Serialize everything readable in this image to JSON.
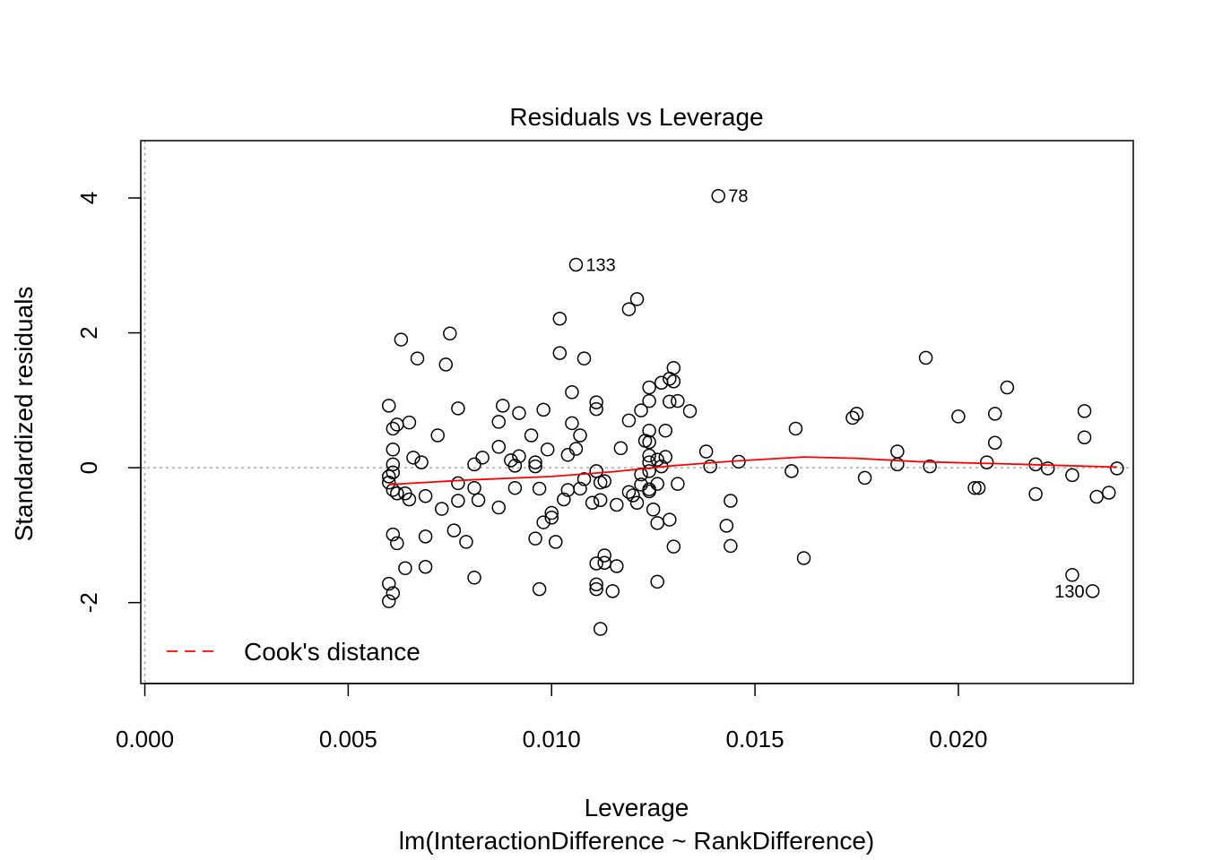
{
  "chart_data": {
    "type": "scatter",
    "title": "Residuals vs Leverage",
    "xlabel": "Leverage",
    "subtitle": "lm(InteractionDifference ~ RankDifference)",
    "ylabel": "Standardized residuals",
    "xlim": [
      -0.0001,
      0.0243
    ],
    "ylim": [
      -3.2,
      4.85
    ],
    "x_ticks": [
      0.0,
      0.005,
      0.01,
      0.015,
      0.02
    ],
    "x_tick_labels": [
      "0.000",
      "0.005",
      "0.010",
      "0.015",
      "0.020"
    ],
    "y_ticks": [
      -2,
      0,
      2,
      4
    ],
    "y_tick_labels": [
      "-2",
      "0",
      "2",
      "4"
    ],
    "reference_lines": {
      "x": 0,
      "y": 0,
      "style": "dotted",
      "color": "#aaaaaa"
    },
    "legend": {
      "position": "bottom-left",
      "entries": [
        {
          "label": "Cook's distance",
          "color": "#ff0000",
          "style": "dashed"
        }
      ]
    },
    "point_color": "#000000",
    "smooth_color": "#ff0000",
    "points": [
      [
        0.0141,
        4.03
      ],
      [
        0.0106,
        3.01
      ],
      [
        0.0121,
        2.5
      ],
      [
        0.0119,
        2.35
      ],
      [
        0.0102,
        2.21
      ],
      [
        0.0063,
        1.9
      ],
      [
        0.0075,
        1.99
      ],
      [
        0.0067,
        1.62
      ],
      [
        0.0074,
        1.53
      ],
      [
        0.0102,
        1.7
      ],
      [
        0.0108,
        1.62
      ],
      [
        0.013,
        1.48
      ],
      [
        0.0129,
        1.32
      ],
      [
        0.013,
        1.28
      ],
      [
        0.0127,
        1.26
      ],
      [
        0.0124,
        1.19
      ],
      [
        0.0105,
        1.12
      ],
      [
        0.0124,
        0.99
      ],
      [
        0.0129,
        0.98
      ],
      [
        0.0131,
        0.99
      ],
      [
        0.0111,
        0.97
      ],
      [
        0.006,
        0.92
      ],
      [
        0.0077,
        0.88
      ],
      [
        0.0088,
        0.92
      ],
      [
        0.0098,
        0.86
      ],
      [
        0.0111,
        0.87
      ],
      [
        0.0092,
        0.81
      ],
      [
        0.0122,
        0.85
      ],
      [
        0.0134,
        0.84
      ],
      [
        0.0065,
        0.67
      ],
      [
        0.0087,
        0.68
      ],
      [
        0.0105,
        0.66
      ],
      [
        0.0119,
        0.7
      ],
      [
        0.0062,
        0.64
      ],
      [
        0.0061,
        0.58
      ],
      [
        0.0124,
        0.55
      ],
      [
        0.0128,
        0.55
      ],
      [
        0.0072,
        0.48
      ],
      [
        0.0095,
        0.48
      ],
      [
        0.0107,
        0.48
      ],
      [
        0.0123,
        0.4
      ],
      [
        0.0124,
        0.38
      ],
      [
        0.0087,
        0.31
      ],
      [
        0.0099,
        0.27
      ],
      [
        0.0106,
        0.28
      ],
      [
        0.0117,
        0.29
      ],
      [
        0.0061,
        0.27
      ],
      [
        0.0083,
        0.15
      ],
      [
        0.0092,
        0.17
      ],
      [
        0.009,
        0.11
      ],
      [
        0.0104,
        0.19
      ],
      [
        0.0124,
        0.18
      ],
      [
        0.0126,
        0.12
      ],
      [
        0.0128,
        0.16
      ],
      [
        0.0066,
        0.15
      ],
      [
        0.0068,
        0.08
      ],
      [
        0.0081,
        0.05
      ],
      [
        0.0091,
        0.03
      ],
      [
        0.0096,
        0.08
      ],
      [
        0.0096,
        0.02
      ],
      [
        0.0124,
        0.08
      ],
      [
        0.0127,
        0.02
      ],
      [
        0.0061,
        0.05
      ],
      [
        0.0061,
        -0.07
      ],
      [
        0.006,
        -0.13
      ],
      [
        0.0111,
        -0.05
      ],
      [
        0.0108,
        -0.17
      ],
      [
        0.0112,
        -0.22
      ],
      [
        0.0113,
        -0.2
      ],
      [
        0.0122,
        -0.1
      ],
      [
        0.0124,
        -0.05
      ],
      [
        0.0126,
        -0.24
      ],
      [
        0.0131,
        -0.24
      ],
      [
        0.006,
        -0.22
      ],
      [
        0.0061,
        -0.33
      ],
      [
        0.0062,
        -0.38
      ],
      [
        0.0064,
        -0.38
      ],
      [
        0.0065,
        -0.47
      ],
      [
        0.0069,
        -0.42
      ],
      [
        0.0077,
        -0.23
      ],
      [
        0.0081,
        -0.3
      ],
      [
        0.0082,
        -0.48
      ],
      [
        0.0091,
        -0.3
      ],
      [
        0.0097,
        -0.31
      ],
      [
        0.0104,
        -0.33
      ],
      [
        0.0107,
        -0.31
      ],
      [
        0.0103,
        -0.47
      ],
      [
        0.011,
        -0.52
      ],
      [
        0.0112,
        -0.48
      ],
      [
        0.0116,
        -0.55
      ],
      [
        0.0119,
        -0.36
      ],
      [
        0.012,
        -0.41
      ],
      [
        0.0121,
        -0.52
      ],
      [
        0.0122,
        -0.25
      ],
      [
        0.0124,
        -0.35
      ],
      [
        0.0124,
        -0.32
      ],
      [
        0.0125,
        -0.62
      ],
      [
        0.0077,
        -0.49
      ],
      [
        0.0073,
        -0.61
      ],
      [
        0.0087,
        -0.59
      ],
      [
        0.01,
        -0.67
      ],
      [
        0.01,
        -0.74
      ],
      [
        0.0098,
        -0.81
      ],
      [
        0.0126,
        -0.82
      ],
      [
        0.0129,
        -0.77
      ],
      [
        0.0061,
        -0.99
      ],
      [
        0.0062,
        -1.12
      ],
      [
        0.0069,
        -1.02
      ],
      [
        0.0076,
        -0.93
      ],
      [
        0.0079,
        -1.1
      ],
      [
        0.0096,
        -1.05
      ],
      [
        0.0101,
        -1.1
      ],
      [
        0.013,
        -1.17
      ],
      [
        0.0064,
        -1.49
      ],
      [
        0.0069,
        -1.47
      ],
      [
        0.0111,
        -1.42
      ],
      [
        0.0113,
        -1.41
      ],
      [
        0.0113,
        -1.3
      ],
      [
        0.0116,
        -1.46
      ],
      [
        0.0081,
        -1.63
      ],
      [
        0.006,
        -1.72
      ],
      [
        0.006,
        -1.98
      ],
      [
        0.0061,
        -1.86
      ],
      [
        0.0097,
        -1.8
      ],
      [
        0.0111,
        -1.73
      ],
      [
        0.0111,
        -1.8
      ],
      [
        0.0115,
        -1.83
      ],
      [
        0.0126,
        -1.69
      ],
      [
        0.0112,
        -2.39
      ],
      [
        0.0138,
        0.24
      ],
      [
        0.0139,
        0.02
      ],
      [
        0.0146,
        0.09
      ],
      [
        0.0144,
        -0.49
      ],
      [
        0.0143,
        -0.86
      ],
      [
        0.0144,
        -1.16
      ],
      [
        0.0159,
        -0.05
      ],
      [
        0.016,
        0.58
      ],
      [
        0.0162,
        -1.34
      ],
      [
        0.0174,
        0.74
      ],
      [
        0.0175,
        0.8
      ],
      [
        0.0177,
        -0.15
      ],
      [
        0.0185,
        0.05
      ],
      [
        0.0185,
        0.24
      ],
      [
        0.0193,
        0.02
      ],
      [
        0.0192,
        1.63
      ],
      [
        0.02,
        0.76
      ],
      [
        0.0204,
        -0.3
      ],
      [
        0.0205,
        -0.3
      ],
      [
        0.0207,
        0.08
      ],
      [
        0.0209,
        0.37
      ],
      [
        0.0209,
        0.8
      ],
      [
        0.0212,
        1.19
      ],
      [
        0.0219,
        0.05
      ],
      [
        0.0219,
        -0.39
      ],
      [
        0.0222,
        -0.01
      ],
      [
        0.0228,
        -0.11
      ],
      [
        0.0231,
        0.84
      ],
      [
        0.0231,
        0.45
      ],
      [
        0.0228,
        -1.59
      ],
      [
        0.0234,
        -0.43
      ],
      [
        0.0233,
        -1.83
      ],
      [
        0.0237,
        -0.37
      ],
      [
        0.0239,
        -0.01
      ]
    ],
    "labeled_points": [
      {
        "x": 0.0141,
        "y": 4.03,
        "label": "78",
        "side": "right"
      },
      {
        "x": 0.0106,
        "y": 3.01,
        "label": "133",
        "side": "right"
      },
      {
        "x": 0.0233,
        "y": -1.83,
        "label": "130",
        "side": "left"
      }
    ],
    "smooth_line": [
      [
        0.006,
        -0.25
      ],
      [
        0.008,
        -0.18
      ],
      [
        0.01,
        -0.13
      ],
      [
        0.0115,
        -0.06
      ],
      [
        0.013,
        0.03
      ],
      [
        0.0145,
        0.1
      ],
      [
        0.0162,
        0.16
      ],
      [
        0.0175,
        0.14
      ],
      [
        0.019,
        0.09
      ],
      [
        0.021,
        0.06
      ],
      [
        0.0239,
        0.01
      ]
    ]
  }
}
